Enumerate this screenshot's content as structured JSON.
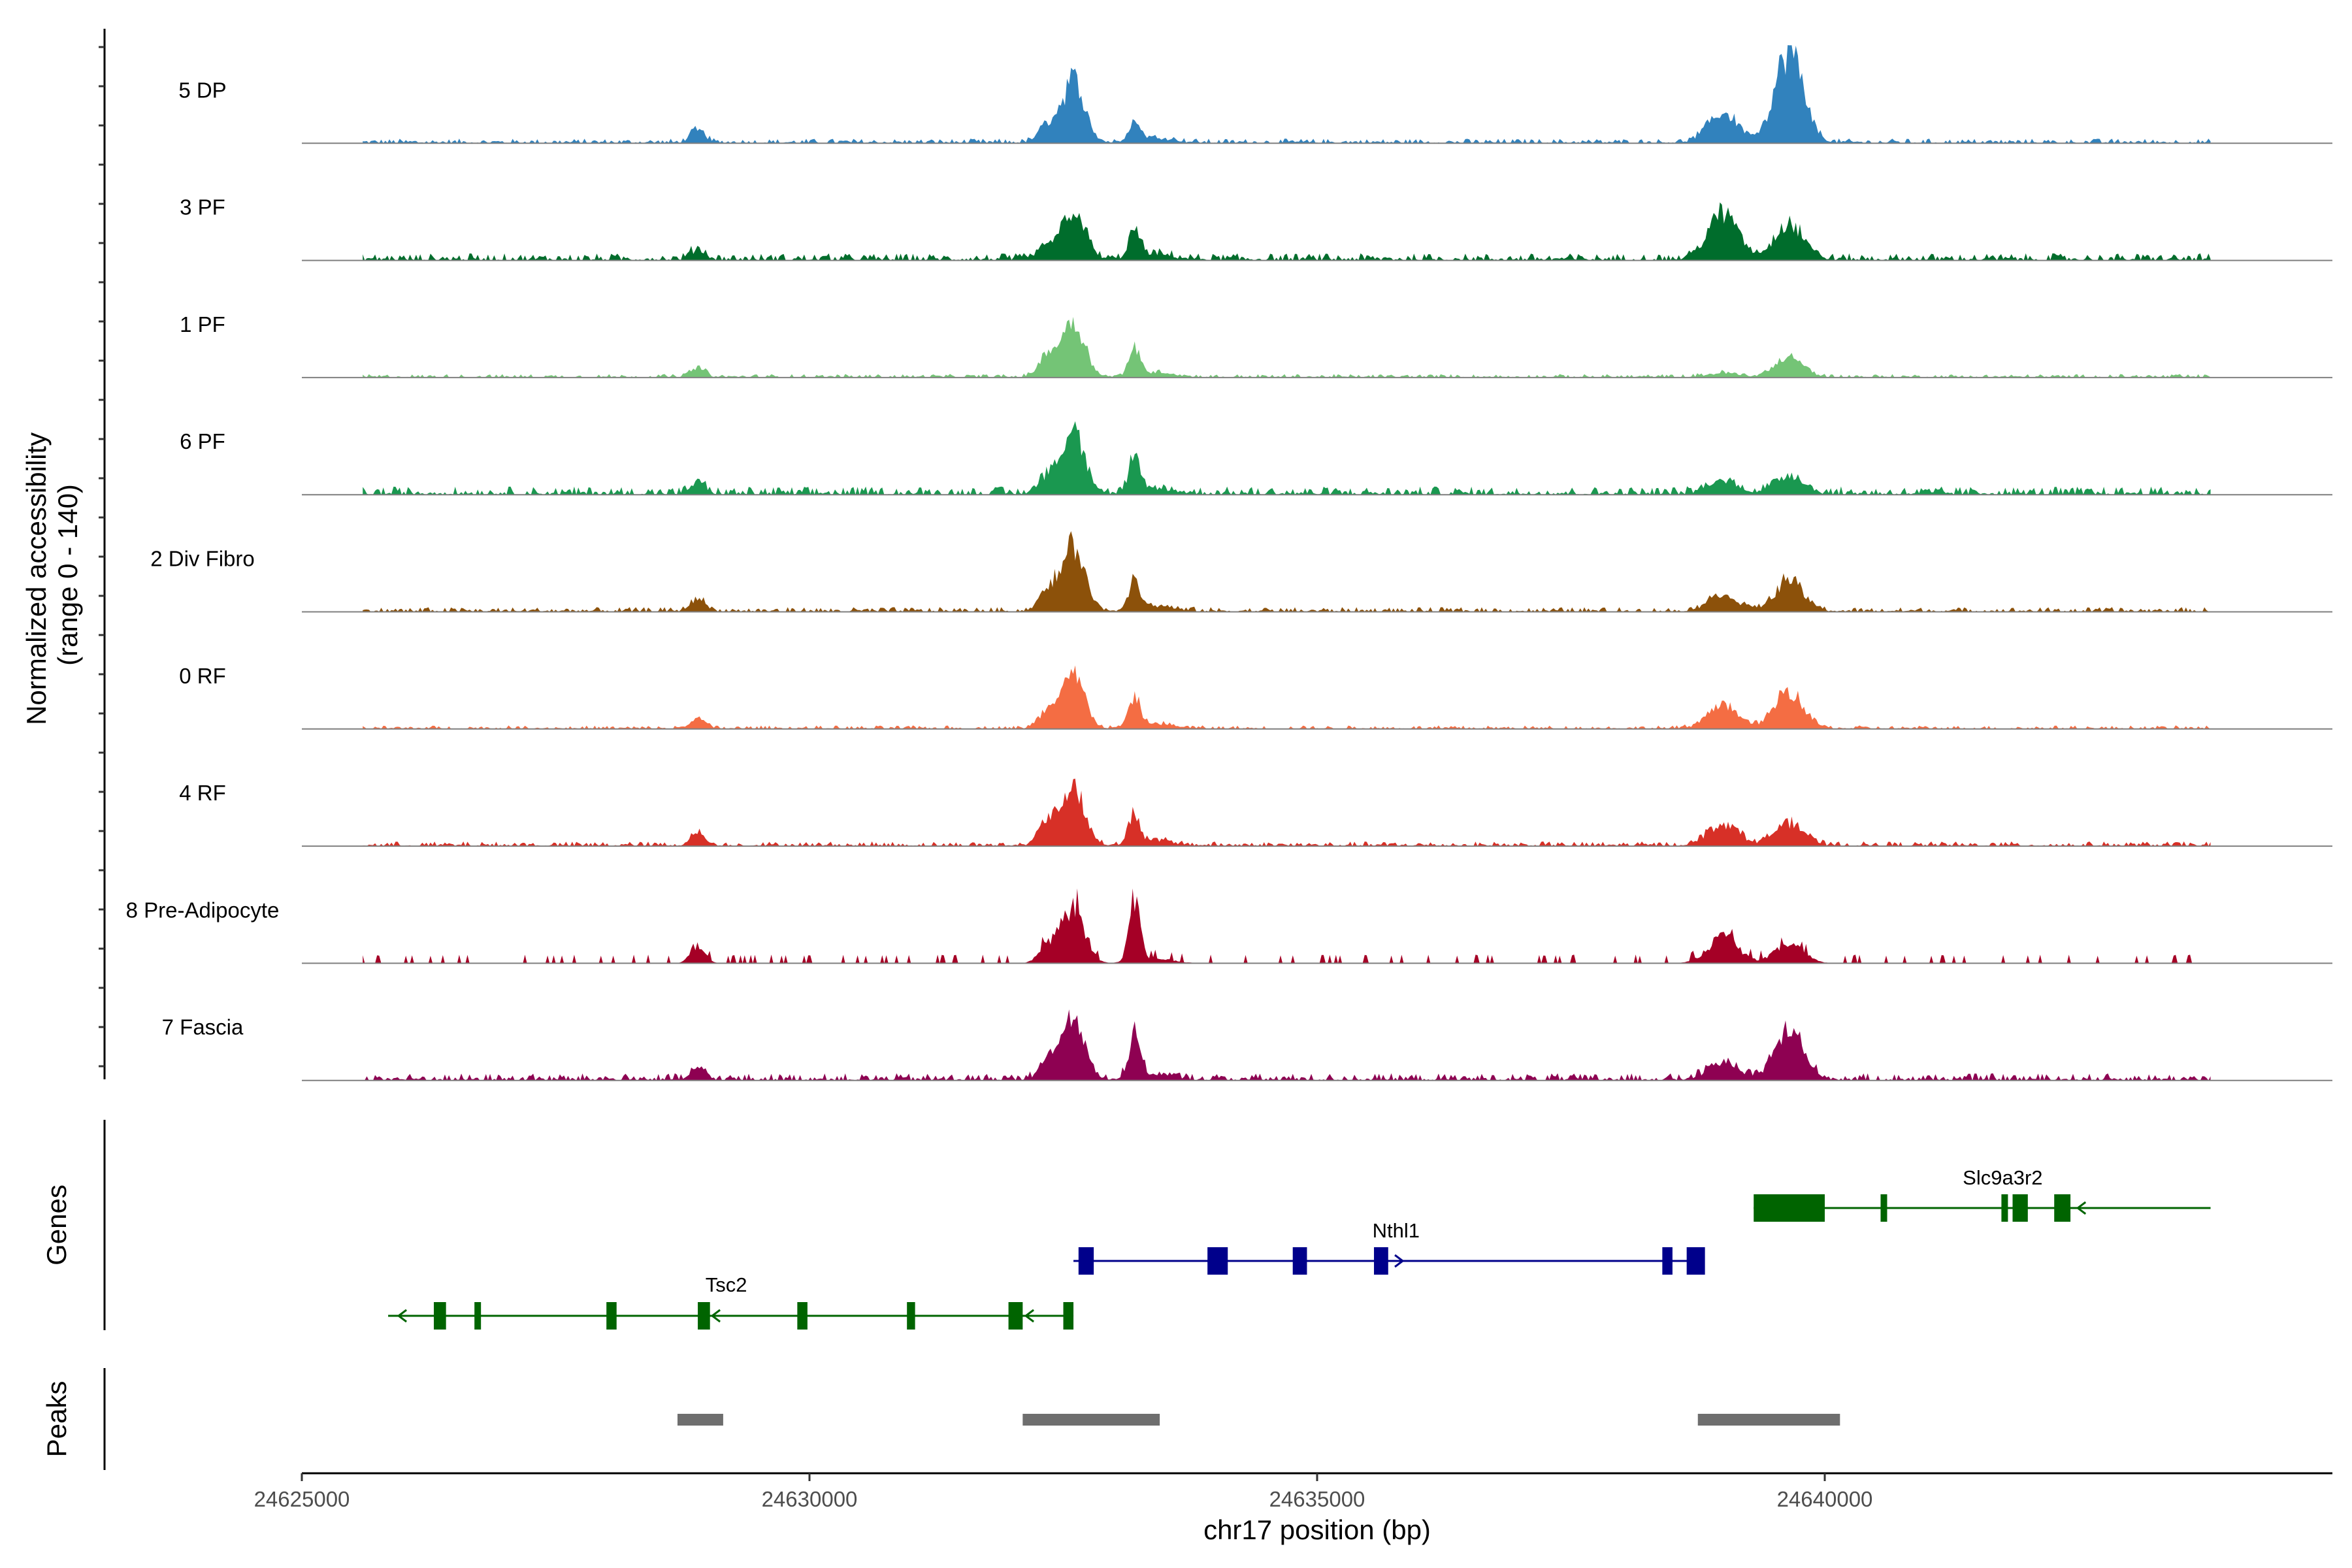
{
  "chart_data": {
    "type": "area",
    "title": "",
    "region": {
      "chrom": "chr17",
      "start": 24625000,
      "end": 24645000
    },
    "xlabel": "chr17 position (bp)",
    "ylabel": "Normalized accessibility\n(range 0 - 140)",
    "ylim": [
      0,
      140
    ],
    "xticks": [
      24625000,
      24630000,
      24635000,
      24640000
    ],
    "xtick_labels": [
      "24625000",
      "24630000",
      "24635000",
      "24640000"
    ],
    "panel_labels": {
      "genes": "Genes",
      "peaks": "Peaks"
    },
    "peak_centers": [
      24628900,
      24632600,
      24633200,
      24639650
    ],
    "tracks": [
      {
        "name": "5 DP",
        "color": "#3182bd",
        "signal": [
          0,
          16,
          78,
          0,
          60,
          10,
          23,
          0,
          37,
          0,
          50,
          5,
          79
        ],
        "noise": 4,
        "sparse": false
      },
      {
        "name": "3 PF",
        "color": "#006d2c",
        "signal": [
          0,
          13,
          63,
          0,
          46,
          12,
          34,
          0,
          57,
          0,
          28,
          5,
          21
        ],
        "noise": 6,
        "sparse": false
      },
      {
        "name": "1 PF",
        "color": "#74c476",
        "signal": [
          0,
          12,
          71,
          0,
          79,
          12,
          34,
          0,
          5,
          0,
          15,
          0,
          12
        ],
        "noise": 3,
        "sparse": false
      },
      {
        "name": "6 PF",
        "color": "#1a9850",
        "signal": [
          0,
          13,
          78,
          0,
          66,
          10,
          40,
          0,
          15,
          0,
          12,
          0,
          14
        ],
        "noise": 7,
        "sparse": false
      },
      {
        "name": "2 Div Fibro",
        "color": "#8c510a",
        "signal": [
          0,
          16,
          81,
          0,
          74,
          12,
          37,
          0,
          20,
          0,
          19,
          0,
          24
        ],
        "noise": 4,
        "sparse": false
      },
      {
        "name": "0 RF",
        "color": "#f46d43",
        "signal": [
          0,
          12,
          66,
          0,
          59,
          6,
          37,
          0,
          29,
          0,
          23,
          0,
          31
        ],
        "noise": 3,
        "sparse": false
      },
      {
        "name": "4 RF",
        "color": "#d73027",
        "signal": [
          0,
          15,
          74,
          0,
          85,
          12,
          37,
          0,
          28,
          0,
          19,
          0,
          12
        ],
        "noise": 4,
        "sparse": false
      },
      {
        "name": "8 Pre-Adipocyte",
        "color": "#a50026",
        "signal": [
          0,
          23,
          72,
          0,
          61,
          9,
          78,
          0,
          32,
          0,
          17,
          0,
          9
        ],
        "noise": 5,
        "sparse": true
      },
      {
        "name": "7 Fascia",
        "color": "#8e0152",
        "signal": [
          0,
          14,
          83,
          0,
          63,
          12,
          52,
          0,
          21,
          0,
          38,
          5,
          32
        ],
        "noise": 6,
        "sparse": false
      }
    ],
    "genes": [
      {
        "name": "Tsc2",
        "strand": "-",
        "start": 24625850,
        "end": 24632600,
        "color": "#006400",
        "exons": [
          [
            24626300,
            24626420
          ],
          [
            24626700,
            24626750
          ],
          [
            24628000,
            24628100
          ],
          [
            24628900,
            24629020
          ],
          [
            24629880,
            24629980
          ],
          [
            24630960,
            24631040
          ],
          [
            24631960,
            24632100
          ],
          [
            24632500,
            24632600
          ]
        ]
      },
      {
        "name": "Nthl1",
        "strand": "+",
        "start": 24632600,
        "end": 24638800,
        "color": "#00008b",
        "exons": [
          [
            24632650,
            24632800
          ],
          [
            24633920,
            24634120
          ],
          [
            24634760,
            24634900
          ],
          [
            24635560,
            24635700
          ],
          [
            24638400,
            24638500
          ],
          [
            24638640,
            24638820
          ]
        ]
      },
      {
        "name": "Slc9a3r2",
        "strand": "-",
        "start": 24639300,
        "end": 24643800,
        "color": "#006400",
        "exons": [
          [
            24639300,
            24640000
          ],
          [
            24640550,
            24640600
          ],
          [
            24641740,
            24641780
          ],
          [
            24641850,
            24642000
          ],
          [
            24642260,
            24642420
          ]
        ]
      }
    ],
    "peaks": [
      {
        "start": 24628700,
        "end": 24629150
      },
      {
        "start": 24632100,
        "end": 24633450
      },
      {
        "start": 24638750,
        "end": 24640150
      }
    ]
  }
}
